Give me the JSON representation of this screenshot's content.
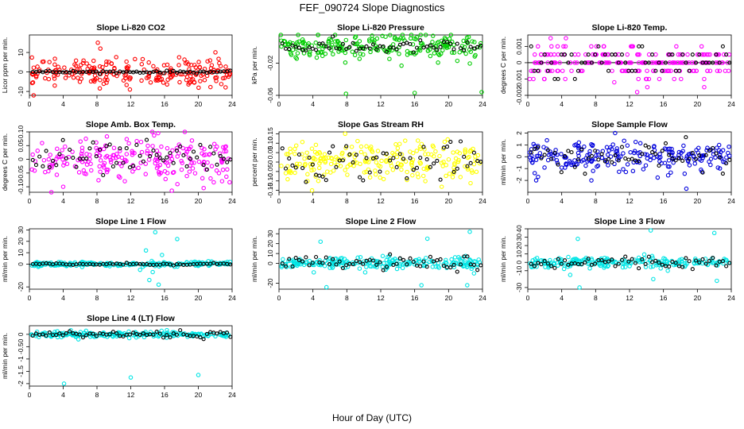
{
  "figure": {
    "title": "FEF_090724  Slope Diagnostics",
    "xlabel": "Hour of Day (UTC)"
  },
  "chart_data": [
    {
      "type": "scatter",
      "title": "Slope Li-820 CO2",
      "ylabel": "Licor ppm per min.",
      "xlim": [
        0,
        24
      ],
      "ylim": [
        -12,
        19
      ],
      "yticks": [
        -10,
        0,
        10
      ],
      "color": "#ff0000",
      "spread": 3.5,
      "outliers": [
        [
          8.1,
          15
        ],
        [
          8.4,
          12
        ],
        [
          13.3,
          4
        ],
        [
          11.9,
          -9
        ],
        [
          3.0,
          -7
        ],
        [
          0.5,
          -12
        ]
      ],
      "black_spread": 0.3,
      "zero_line": true,
      "xticks": [
        0,
        4,
        8,
        12,
        16,
        20,
        24
      ]
    },
    {
      "type": "scatter",
      "title": "Slope Li-820 Pressure",
      "ylabel": "kPa per min.",
      "xlim": [
        0,
        24
      ],
      "ylim": [
        -0.06,
        0.015
      ],
      "yticks": [
        -0.06,
        -0.02
      ],
      "color": "#00cc00",
      "spread": 0.008,
      "outliers": [
        [
          7.9,
          -0.058
        ],
        [
          16.0,
          -0.057
        ],
        [
          23.9,
          -0.056
        ]
      ],
      "black_spread": 0.004,
      "zero_line": false,
      "xticks": [
        0,
        4,
        8,
        12,
        16,
        20,
        24
      ]
    },
    {
      "type": "scatter",
      "title": "Slope Li-820 Temp.",
      "ylabel": "degrees C per min.",
      "xlim": [
        0,
        24
      ],
      "ylim": [
        -0.002,
        0.0017
      ],
      "yticks": [
        -0.002,
        -0.001,
        0.0,
        0.001
      ],
      "color": "#ff00ff",
      "spread": 0.0005,
      "outliers": [
        [
          12.9,
          -0.0018
        ],
        [
          10.2,
          -0.0012
        ],
        [
          12.4,
          0.001
        ]
      ],
      "black_spread": 0.0005,
      "zero_line": true,
      "discrete": 0.0005,
      "xticks": [
        0,
        4,
        8,
        12,
        16,
        20,
        24
      ]
    },
    {
      "type": "scatter",
      "title": "Slope Amb. Box Temp.",
      "ylabel": "degrees C per min.",
      "xlim": [
        0,
        24
      ],
      "ylim": [
        -0.12,
        0.1
      ],
      "yticks": [
        -0.1,
        -0.05,
        0.0,
        0.05,
        0.1
      ],
      "color": "#ff00ff",
      "spread": 0.04,
      "outliers": [
        [
          2.6,
          -0.12
        ],
        [
          18.4,
          0.1
        ],
        [
          4.0,
          -0.1
        ]
      ],
      "black_spread": 0.03,
      "zero_line": false,
      "xticks": [
        0,
        4,
        8,
        12,
        16,
        20,
        24
      ]
    },
    {
      "type": "scatter",
      "title": "Slope Gas Stream RH",
      "ylabel": "percent per min.",
      "xlim": [
        0,
        24
      ],
      "ylim": [
        -0.16,
        0.16
      ],
      "yticks": [
        -0.15,
        -0.1,
        -0.05,
        0.0,
        0.05,
        0.1,
        0.15
      ],
      "color": "#ffff00",
      "spread": 0.05,
      "outliers": [
        [
          3.9,
          -0.15
        ],
        [
          7.8,
          0.15
        ],
        [
          19.9,
          0.12
        ]
      ],
      "black_spread": 0.05,
      "zero_line": false,
      "xticks": [
        0,
        4,
        8,
        12,
        16,
        20,
        24
      ]
    },
    {
      "type": "scatter",
      "title": "Slope Sample Flow",
      "ylabel": "ml/min per min.",
      "xlim": [
        0,
        24
      ],
      "ylim": [
        -3,
        2.1
      ],
      "yticks": [
        -2,
        -1,
        0,
        1,
        2
      ],
      "color": "#0000dd",
      "spread": 0.6,
      "outliers": [
        [
          18.7,
          -2.7
        ],
        [
          10.3,
          2.0
        ],
        [
          7.5,
          -2.0
        ]
      ],
      "black_spread": 0.6,
      "zero_line": false,
      "xticks": [
        0,
        4,
        8,
        12,
        16,
        20,
        24
      ]
    },
    {
      "type": "scatter",
      "title": "Slope Line 1 Flow",
      "ylabel": "ml/min per min.",
      "xlim": [
        0,
        24
      ],
      "ylim": [
        -22,
        31
      ],
      "yticks": [
        -20,
        0,
        10,
        20,
        30
      ],
      "color": "#00e5e5",
      "spread": 1.0,
      "outliers": [
        [
          14.9,
          28
        ],
        [
          17.5,
          22
        ],
        [
          15.3,
          -18
        ],
        [
          14.2,
          -14
        ],
        [
          13.1,
          -5
        ],
        [
          13.8,
          12
        ],
        [
          15.7,
          8
        ],
        [
          14.6,
          -7
        ]
      ],
      "black_spread": 0.5,
      "zero_line": true,
      "xticks": [
        0,
        4,
        8,
        12,
        16,
        20,
        24
      ]
    },
    {
      "type": "scatter",
      "title": "Slope Line 2 Flow",
      "ylabel": "ml/min per min.",
      "xlim": [
        0,
        24
      ],
      "ylim": [
        -26,
        35
      ],
      "yticks": [
        -20,
        0,
        10,
        20,
        30
      ],
      "color": "#00e5e5",
      "spread": 3.0,
      "outliers": [
        [
          4.9,
          22
        ],
        [
          17.5,
          25
        ],
        [
          22.5,
          32
        ],
        [
          5.6,
          -24
        ],
        [
          16.8,
          -22
        ],
        [
          22.2,
          -22
        ],
        [
          4.1,
          -9
        ],
        [
          23.0,
          -10
        ]
      ],
      "black_spread": 3.5,
      "zero_line": false,
      "xticks": [
        0,
        4,
        8,
        12,
        16,
        20,
        24
      ]
    },
    {
      "type": "scatter",
      "title": "Slope Line 3 Flow",
      "ylabel": "ml/min per min.",
      "xlim": [
        0,
        24
      ],
      "ylim": [
        -32,
        40
      ],
      "yticks": [
        -30,
        -10,
        0,
        10,
        20,
        30,
        40
      ],
      "color": "#00e5e5",
      "spread": 3.0,
      "outliers": [
        [
          14.5,
          38
        ],
        [
          22.0,
          35
        ],
        [
          5.9,
          28
        ],
        [
          6.1,
          -30
        ],
        [
          14.8,
          -20
        ],
        [
          22.3,
          -22
        ],
        [
          5.0,
          -15
        ]
      ],
      "black_spread": 4.0,
      "zero_line": false,
      "xticks": [
        0,
        4,
        8,
        12,
        16,
        20,
        24
      ]
    },
    {
      "type": "scatter",
      "title": "Slope Line 4 (LT) Flow",
      "ylabel": "ml/min per min.",
      "xlim": [
        0,
        24
      ],
      "ylim": [
        -2.1,
        0.35
      ],
      "yticks": [
        -2.0,
        -1.5,
        -1.0,
        -0.5,
        0.0
      ],
      "color": "#00e5e5",
      "spread": 0.06,
      "outliers": [
        [
          4.1,
          -2.0
        ],
        [
          12.0,
          -1.75
        ],
        [
          20.0,
          -1.65
        ]
      ],
      "black_spread": 0.08,
      "zero_line": false,
      "xticks": [
        0,
        4,
        8,
        12,
        16,
        20,
        24
      ]
    }
  ]
}
